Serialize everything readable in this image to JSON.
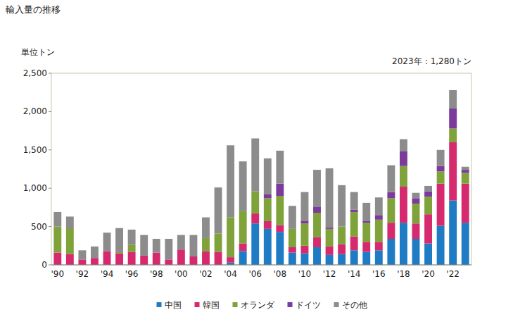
{
  "chart_data": {
    "type": "bar",
    "stacked": true,
    "title": "輸入量の推移",
    "y_label": "単位トン",
    "annotation": "2023年：1,280トン",
    "categories": [
      "'90",
      null,
      "'92",
      null,
      "'94",
      null,
      "'96",
      null,
      "'98",
      null,
      "'00",
      null,
      "'02",
      null,
      "'04",
      null,
      "'06",
      null,
      "'08",
      null,
      "'10",
      null,
      "'12",
      null,
      "'14",
      null,
      "'16",
      null,
      "'18",
      null,
      "'20",
      null,
      "'22",
      null
    ],
    "series": [
      {
        "name": "中国",
        "color": "#1f7cc4",
        "values": [
          0,
          0,
          0,
          0,
          0,
          0,
          0,
          0,
          0,
          0,
          0,
          0,
          0,
          0,
          30,
          180,
          540,
          470,
          430,
          160,
          150,
          230,
          130,
          140,
          190,
          170,
          190,
          340,
          550,
          340,
          280,
          510,
          840,
          550
        ]
      },
      {
        "name": "韓国",
        "color": "#d62a6f",
        "values": [
          160,
          140,
          70,
          90,
          180,
          150,
          170,
          120,
          160,
          70,
          200,
          110,
          180,
          170,
          70,
          100,
          130,
          100,
          90,
          70,
          100,
          130,
          110,
          130,
          180,
          130,
          110,
          210,
          470,
          200,
          380,
          550,
          760,
          510
        ]
      },
      {
        "name": "オランダ",
        "color": "#7fa23a",
        "values": [
          340,
          340,
          0,
          0,
          0,
          20,
          90,
          0,
          0,
          0,
          0,
          0,
          170,
          240,
          520,
          420,
          290,
          300,
          380,
          240,
          290,
          320,
          230,
          230,
          320,
          250,
          290,
          320,
          270,
          260,
          230,
          160,
          180,
          140
        ]
      },
      {
        "name": "ドイツ",
        "color": "#7b3a9c",
        "values": [
          0,
          10,
          0,
          0,
          0,
          10,
          0,
          0,
          0,
          0,
          0,
          0,
          0,
          0,
          0,
          0,
          0,
          50,
          160,
          0,
          30,
          80,
          20,
          0,
          30,
          20,
          60,
          80,
          190,
          70,
          70,
          70,
          260,
          40
        ]
      },
      {
        "name": "その他",
        "color": "#8c8c8c",
        "values": [
          190,
          140,
          120,
          150,
          240,
          300,
          200,
          270,
          180,
          270,
          190,
          280,
          270,
          600,
          940,
          650,
          690,
          470,
          430,
          300,
          380,
          480,
          770,
          540,
          230,
          240,
          230,
          350,
          160,
          70,
          70,
          210,
          240,
          40
        ]
      }
    ],
    "ylim": [
      0,
      2500
    ],
    "yticks": [
      0,
      500,
      {
        "value": 1000,
        "label": "1,000"
      },
      {
        "value": 1500,
        "label": "1,500"
      },
      {
        "value": 2000,
        "label": "2,000"
      },
      {
        "value": 2500,
        "label": "2,500"
      }
    ],
    "legend": "bottom"
  }
}
